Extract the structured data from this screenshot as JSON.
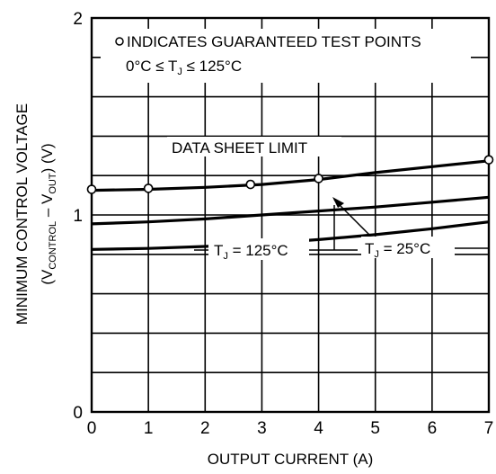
{
  "chart_data": {
    "type": "line",
    "title": "",
    "xlabel": "OUTPUT CURRENT (A)",
    "ylabel": {
      "line1": "MINIMUM CONTROL VOLTAGE",
      "line2_prefix": "(V",
      "line2_sub1": "CONTROL",
      "line2_mid": " – V",
      "line2_sub2": "OUT",
      "line2_suffix": ") (V)"
    },
    "xlim": [
      0,
      7
    ],
    "ylim": [
      0,
      2
    ],
    "x_ticks": [
      0,
      1,
      2,
      3,
      4,
      5,
      6,
      7
    ],
    "x_tick_labels": [
      "0",
      "1",
      "2",
      "3",
      "4",
      "5",
      "6",
      "7"
    ],
    "y_ticks": [
      0,
      1,
      2
    ],
    "y_tick_labels": [
      "0",
      "1",
      "2"
    ],
    "grid": true,
    "series": [
      {
        "label_parts": {
          "main": "DATA SHEET LIMIT"
        },
        "x": [
          0,
          1,
          2,
          3,
          4,
          5,
          6,
          7
        ],
        "y": [
          1.125,
          1.13,
          1.14,
          1.155,
          1.18,
          1.215,
          1.245,
          1.275
        ]
      },
      {
        "label_parts": {
          "prefix": "T",
          "sub": "J",
          "suffix": " = 25°C"
        },
        "x": [
          0,
          1,
          2,
          3,
          4,
          5,
          6,
          7
        ],
        "y": [
          0.955,
          0.965,
          0.98,
          1.0,
          1.02,
          1.04,
          1.065,
          1.09
        ]
      },
      {
        "label_parts": {
          "prefix": "T",
          "sub": "J",
          "suffix": " = 125°C"
        },
        "x": [
          0,
          1,
          2,
          3,
          4,
          5,
          6,
          7
        ],
        "y": [
          0.825,
          0.83,
          0.84,
          0.855,
          0.875,
          0.9,
          0.93,
          0.965
        ]
      }
    ],
    "test_points": {
      "x": [
        0,
        1,
        2.8,
        4,
        7
      ],
      "y": [
        1.13,
        1.135,
        1.155,
        1.185,
        1.28
      ]
    },
    "legend": {
      "marker_text": "INDICATES GUARANTEED TEST POINTS",
      "range_prefix": "0°C ≤ T",
      "range_sub": "J",
      "range_suffix": " ≤ 125°C"
    }
  }
}
